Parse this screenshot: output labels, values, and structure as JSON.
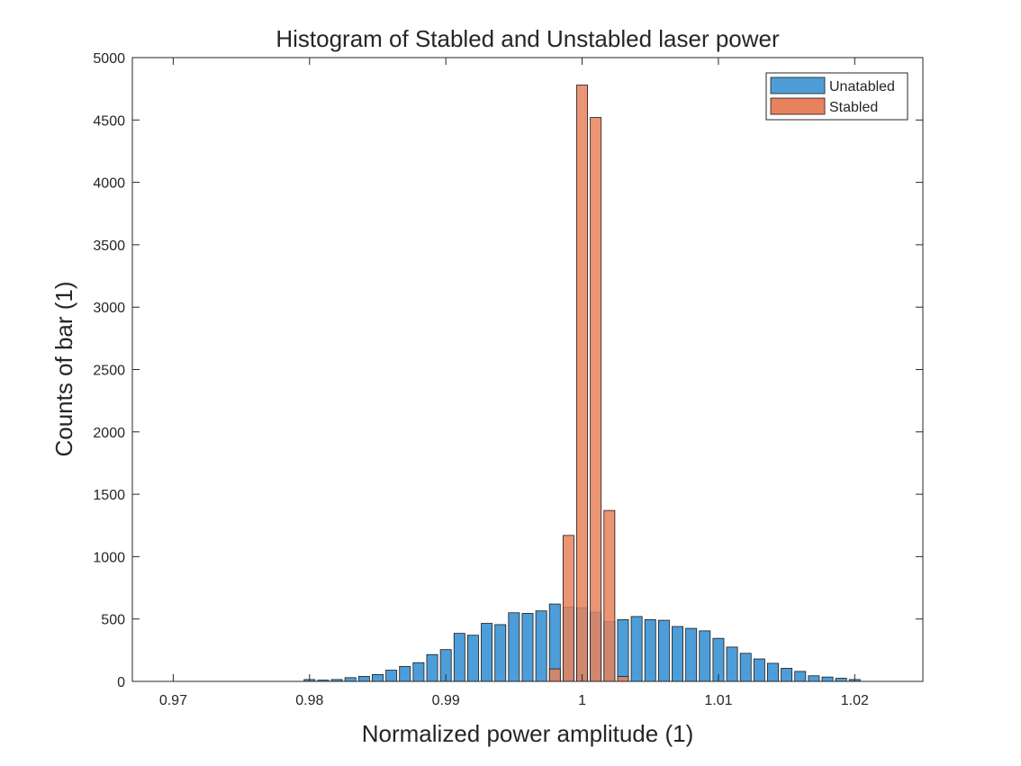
{
  "chart_data": {
    "type": "bar",
    "title": "Histogram of Stabled and Unstabled laser power",
    "xlabel": "Normalized power amplitude (1)",
    "ylabel": "Counts of bar (1)",
    "xlim": [
      0.967,
      1.025
    ],
    "ylim": [
      0,
      5000
    ],
    "xticks": [
      0.97,
      0.98,
      0.99,
      1,
      1.01,
      1.02
    ],
    "xtick_labels": [
      "0.97",
      "0.98",
      "0.99",
      "1",
      "1.01",
      "1.02"
    ],
    "yticks": [
      0,
      500,
      1000,
      1500,
      2000,
      2500,
      3000,
      3500,
      4000,
      4500,
      5000
    ],
    "ytick_labels": [
      "0",
      "500",
      "1000",
      "1500",
      "2000",
      "2500",
      "3000",
      "3500",
      "4000",
      "4500",
      "5000"
    ],
    "grid": false,
    "legend_position": "top-right",
    "series": [
      {
        "name": "Unatabled",
        "color": "#4d9ed8",
        "x": [
          0.98,
          0.981,
          0.982,
          0.983,
          0.984,
          0.985,
          0.986,
          0.987,
          0.988,
          0.989,
          0.99,
          0.991,
          0.992,
          0.993,
          0.994,
          0.995,
          0.996,
          0.997,
          0.998,
          0.999,
          1.0,
          1.001,
          1.002,
          1.003,
          1.004,
          1.005,
          1.006,
          1.007,
          1.008,
          1.009,
          1.01,
          1.011,
          1.012,
          1.013,
          1.014,
          1.015,
          1.016,
          1.017,
          1.018,
          1.019,
          1.02
        ],
        "values": [
          15,
          10,
          15,
          30,
          40,
          55,
          90,
          120,
          150,
          215,
          255,
          385,
          370,
          465,
          455,
          550,
          545,
          565,
          620,
          595,
          590,
          555,
          480,
          495,
          520,
          495,
          490,
          440,
          425,
          405,
          345,
          275,
          225,
          180,
          145,
          105,
          80,
          45,
          35,
          25,
          15
        ]
      },
      {
        "name": "Stabled",
        "color": "#e8825c",
        "x": [
          0.998,
          0.999,
          1.0,
          1.001,
          1.002,
          1.003
        ],
        "values": [
          100,
          1170,
          4780,
          4520,
          1370,
          40
        ]
      }
    ]
  }
}
